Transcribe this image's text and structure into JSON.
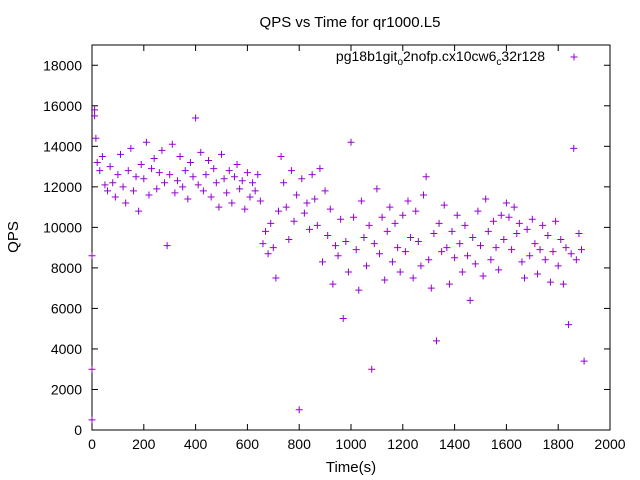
{
  "chart_data": {
    "type": "scatter",
    "title": "QPS vs Time for qr1000.L5",
    "xlabel": "Time(s)",
    "ylabel": "QPS",
    "xlim": [
      0,
      2000
    ],
    "ylim": [
      0,
      19000
    ],
    "x_ticks": [
      0,
      200,
      400,
      600,
      800,
      1000,
      1200,
      1400,
      1600,
      1800,
      2000
    ],
    "y_ticks": [
      0,
      2000,
      4000,
      6000,
      8000,
      10000,
      12000,
      14000,
      16000,
      18000
    ],
    "grid": false,
    "legend_position": "top-right",
    "marker": "+",
    "series": [
      {
        "name_parts": [
          "pg18b1git",
          "o",
          "2nofp.cx10cw6",
          "c",
          "32r128"
        ],
        "color": "#9400d3",
        "points": [
          [
            0,
            3000
          ],
          [
            0,
            8600
          ],
          [
            0,
            500
          ],
          [
            10,
            15800
          ],
          [
            10,
            15500
          ],
          [
            15,
            14400
          ],
          [
            20,
            13200
          ],
          [
            30,
            12800
          ],
          [
            40,
            13500
          ],
          [
            50,
            12100
          ],
          [
            60,
            11800
          ],
          [
            70,
            13000
          ],
          [
            80,
            12200
          ],
          [
            90,
            11500
          ],
          [
            100,
            12600
          ],
          [
            110,
            13600
          ],
          [
            120,
            12000
          ],
          [
            130,
            11200
          ],
          [
            140,
            12800
          ],
          [
            150,
            13900
          ],
          [
            160,
            11800
          ],
          [
            170,
            12500
          ],
          [
            180,
            10800
          ],
          [
            190,
            13100
          ],
          [
            200,
            12400
          ],
          [
            210,
            14200
          ],
          [
            220,
            11600
          ],
          [
            230,
            12900
          ],
          [
            240,
            13400
          ],
          [
            250,
            11900
          ],
          [
            260,
            12700
          ],
          [
            270,
            13800
          ],
          [
            280,
            12200
          ],
          [
            290,
            9100
          ],
          [
            300,
            12600
          ],
          [
            310,
            14100
          ],
          [
            320,
            11700
          ],
          [
            330,
            12300
          ],
          [
            340,
            13500
          ],
          [
            350,
            12000
          ],
          [
            360,
            12800
          ],
          [
            370,
            11400
          ],
          [
            380,
            13200
          ],
          [
            390,
            12500
          ],
          [
            400,
            15400
          ],
          [
            410,
            12100
          ],
          [
            420,
            13700
          ],
          [
            430,
            11800
          ],
          [
            440,
            12600
          ],
          [
            450,
            13300
          ],
          [
            460,
            11500
          ],
          [
            470,
            12900
          ],
          [
            480,
            12200
          ],
          [
            490,
            11000
          ],
          [
            500,
            13600
          ],
          [
            510,
            12400
          ],
          [
            520,
            11700
          ],
          [
            530,
            12800
          ],
          [
            540,
            11200
          ],
          [
            550,
            12500
          ],
          [
            560,
            13100
          ],
          [
            570,
            11900
          ],
          [
            580,
            12300
          ],
          [
            590,
            10900
          ],
          [
            600,
            12700
          ],
          [
            610,
            11500
          ],
          [
            620,
            12200
          ],
          [
            630,
            11800
          ],
          [
            640,
            12600
          ],
          [
            650,
            11300
          ],
          [
            660,
            9200
          ],
          [
            670,
            9800
          ],
          [
            680,
            8700
          ],
          [
            690,
            10200
          ],
          [
            700,
            9000
          ],
          [
            710,
            7500
          ],
          [
            720,
            10800
          ],
          [
            730,
            13500
          ],
          [
            740,
            12200
          ],
          [
            750,
            11000
          ],
          [
            760,
            9400
          ],
          [
            770,
            12800
          ],
          [
            780,
            10300
          ],
          [
            790,
            11600
          ],
          [
            800,
            1000
          ],
          [
            810,
            12400
          ],
          [
            820,
            10700
          ],
          [
            830,
            11200
          ],
          [
            840,
            9900
          ],
          [
            850,
            12600
          ],
          [
            860,
            11400
          ],
          [
            870,
            10100
          ],
          [
            880,
            12900
          ],
          [
            890,
            8300
          ],
          [
            900,
            11800
          ],
          [
            910,
            9600
          ],
          [
            920,
            10900
          ],
          [
            930,
            7200
          ],
          [
            940,
            9100
          ],
          [
            950,
            8600
          ],
          [
            960,
            10400
          ],
          [
            970,
            5500
          ],
          [
            980,
            9300
          ],
          [
            990,
            7800
          ],
          [
            1000,
            14200
          ],
          [
            1010,
            10500
          ],
          [
            1020,
            8900
          ],
          [
            1030,
            6900
          ],
          [
            1040,
            11300
          ],
          [
            1050,
            9500
          ],
          [
            1060,
            8100
          ],
          [
            1070,
            10100
          ],
          [
            1080,
            3000
          ],
          [
            1090,
            9200
          ],
          [
            1100,
            11900
          ],
          [
            1110,
            8700
          ],
          [
            1120,
            10500
          ],
          [
            1130,
            7400
          ],
          [
            1140,
            9800
          ],
          [
            1150,
            11000
          ],
          [
            1160,
            8300
          ],
          [
            1170,
            10200
          ],
          [
            1180,
            9000
          ],
          [
            1190,
            7800
          ],
          [
            1200,
            10600
          ],
          [
            1210,
            8800
          ],
          [
            1220,
            11300
          ],
          [
            1230,
            9500
          ],
          [
            1240,
            7500
          ],
          [
            1250,
            10800
          ],
          [
            1260,
            9300
          ],
          [
            1270,
            8100
          ],
          [
            1280,
            11600
          ],
          [
            1290,
            12500
          ],
          [
            1300,
            8400
          ],
          [
            1310,
            7000
          ],
          [
            1320,
            9700
          ],
          [
            1330,
            4400
          ],
          [
            1340,
            10200
          ],
          [
            1350,
            8800
          ],
          [
            1360,
            11100
          ],
          [
            1370,
            9000
          ],
          [
            1380,
            7200
          ],
          [
            1390,
            9800
          ],
          [
            1400,
            8500
          ],
          [
            1410,
            10600
          ],
          [
            1420,
            9200
          ],
          [
            1430,
            7800
          ],
          [
            1440,
            10100
          ],
          [
            1450,
            8600
          ],
          [
            1460,
            6400
          ],
          [
            1470,
            9500
          ],
          [
            1480,
            8200
          ],
          [
            1490,
            10800
          ],
          [
            1500,
            9100
          ],
          [
            1510,
            7600
          ],
          [
            1520,
            11400
          ],
          [
            1530,
            9800
          ],
          [
            1540,
            8400
          ],
          [
            1550,
            10300
          ],
          [
            1560,
            9000
          ],
          [
            1570,
            7900
          ],
          [
            1580,
            10600
          ],
          [
            1590,
            9400
          ],
          [
            1600,
            11200
          ],
          [
            1610,
            10500
          ],
          [
            1620,
            8900
          ],
          [
            1630,
            11000
          ],
          [
            1640,
            9700
          ],
          [
            1650,
            10200
          ],
          [
            1660,
            8300
          ],
          [
            1670,
            7500
          ],
          [
            1680,
            9900
          ],
          [
            1690,
            8600
          ],
          [
            1700,
            10400
          ],
          [
            1710,
            9200
          ],
          [
            1720,
            7700
          ],
          [
            1730,
            8900
          ],
          [
            1740,
            10100
          ],
          [
            1750,
            8400
          ],
          [
            1760,
            9600
          ],
          [
            1770,
            7300
          ],
          [
            1780,
            8800
          ],
          [
            1790,
            10300
          ],
          [
            1800,
            8100
          ],
          [
            1810,
            9400
          ],
          [
            1820,
            7200
          ],
          [
            1830,
            9000
          ],
          [
            1840,
            5200
          ],
          [
            1850,
            8700
          ],
          [
            1860,
            13900
          ],
          [
            1870,
            8400
          ],
          [
            1880,
            9700
          ],
          [
            1890,
            8900
          ],
          [
            1900,
            3400
          ]
        ]
      }
    ]
  }
}
